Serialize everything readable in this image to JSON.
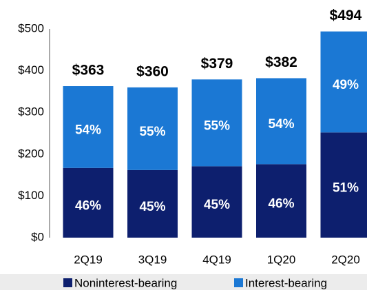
{
  "chart_data": {
    "type": "stacked_bar",
    "categories": [
      "2Q19",
      "3Q19",
      "4Q19",
      "1Q20",
      "2Q20"
    ],
    "series": [
      {
        "name": "Noninterest-bearing",
        "color": "#0d1f6e",
        "values": [
          167,
          162,
          171,
          176,
          252
        ],
        "share_labels": [
          "46%",
          "45%",
          "45%",
          "46%",
          "51%"
        ]
      },
      {
        "name": "Interest-bearing",
        "color": "#1b78d4",
        "values": [
          196,
          198,
          208,
          206,
          242
        ],
        "share_labels": [
          "54%",
          "55%",
          "55%",
          "54%",
          "49%"
        ]
      }
    ],
    "totals": [
      363,
      360,
      379,
      382,
      494
    ],
    "total_labels": [
      "$363",
      "$360",
      "$379",
      "$382",
      "$494"
    ],
    "ylim": [
      0,
      500
    ],
    "yticks": [
      {
        "value": 0,
        "label": "$0"
      },
      {
        "value": 100,
        "label": "$100"
      },
      {
        "value": 200,
        "label": "$200"
      },
      {
        "value": 300,
        "label": "$300"
      },
      {
        "value": 400,
        "label": "$400"
      },
      {
        "value": 500,
        "label": "$500"
      }
    ],
    "grid": false,
    "legend": "bottom"
  }
}
